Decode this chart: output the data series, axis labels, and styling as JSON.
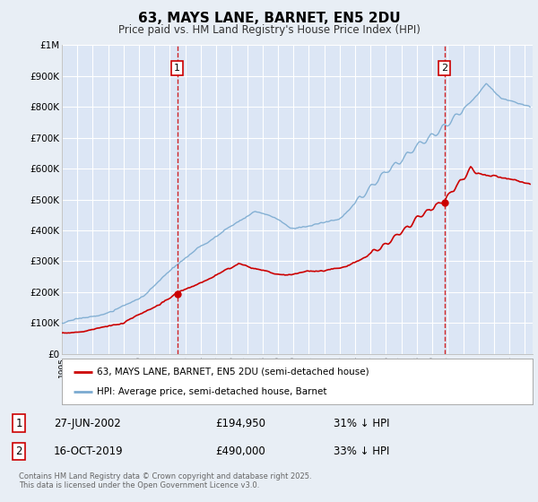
{
  "title": "63, MAYS LANE, BARNET, EN5 2DU",
  "subtitle": "Price paid vs. HM Land Registry's House Price Index (HPI)",
  "background_color": "#e8eef5",
  "plot_bg_color": "#dce6f5",
  "grid_color": "#ffffff",
  "ylim": [
    0,
    1000000
  ],
  "yticks": [
    0,
    100000,
    200000,
    300000,
    400000,
    500000,
    600000,
    700000,
    800000,
    900000,
    1000000
  ],
  "ytick_labels": [
    "£0",
    "£100K",
    "£200K",
    "£300K",
    "£400K",
    "£500K",
    "£600K",
    "£700K",
    "£800K",
    "£900K",
    "£1M"
  ],
  "xlim_start": 1995.0,
  "xlim_end": 2025.5,
  "marker1_x": 2002.48,
  "marker1_y": 194950,
  "marker2_x": 2019.79,
  "marker2_y": 490000,
  "marker1_date": "27-JUN-2002",
  "marker1_price": "£194,950",
  "marker1_hpi": "31% ↓ HPI",
  "marker2_date": "16-OCT-2019",
  "marker2_price": "£490,000",
  "marker2_hpi": "33% ↓ HPI",
  "legend_line1": "63, MAYS LANE, BARNET, EN5 2DU (semi-detached house)",
  "legend_line2": "HPI: Average price, semi-detached house, Barnet",
  "footer": "Contains HM Land Registry data © Crown copyright and database right 2025.\nThis data is licensed under the Open Government Licence v3.0.",
  "red_color": "#cc0000",
  "blue_color": "#7aaad0",
  "marker_box_color": "#cc0000"
}
